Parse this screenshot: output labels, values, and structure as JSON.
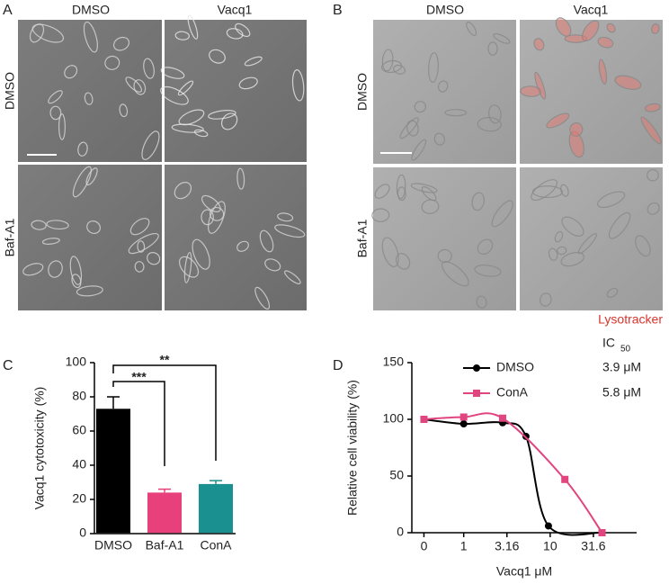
{
  "panels": [
    {
      "label": "A",
      "columns": [
        "DMSO",
        "Vacq1"
      ],
      "rows": [
        "DMSO",
        "Baf-A1"
      ]
    },
    {
      "label": "B",
      "columns": [
        "DMSO",
        "Vacq1"
      ],
      "rows": [
        "DMSO",
        "Baf-A1"
      ],
      "stain": "Lysotracker"
    }
  ],
  "chart_data": [
    {
      "type": "bar",
      "panel_label": "C",
      "y_label": "Vacq1 cytotoxicity (%)",
      "categories": [
        "DMSO",
        "Baf-A1",
        "ConA"
      ],
      "values": [
        73,
        24,
        29
      ],
      "errors": [
        7,
        2,
        2
      ],
      "colors": [
        "#000000",
        "#e8407a",
        "#1a9090"
      ],
      "ylim": [
        0,
        100
      ],
      "yticks": [
        0,
        20,
        40,
        60,
        80,
        100
      ],
      "annotations": [
        "***",
        "**"
      ]
    },
    {
      "type": "line",
      "panel_label": "D",
      "y_label": "Relative cell viability (%)",
      "x_label": "Vacq1 μM",
      "xlim": [
        -0.6,
        2.0
      ],
      "xticks": [
        {
          "value": -0.46,
          "label": "0"
        },
        {
          "value": 0,
          "label": "1"
        },
        {
          "value": 0.5,
          "label": "3.16"
        },
        {
          "value": 1,
          "label": "10"
        },
        {
          "value": 1.5,
          "label": "31.6"
        }
      ],
      "ylim": [
        0,
        150
      ],
      "yticks": [
        0,
        50,
        100,
        150
      ],
      "legend_title": {
        "main": "IC",
        "sub": "50"
      },
      "series": [
        {
          "name": "DMSO",
          "color": "#000000",
          "marker": "circle",
          "ic50_label": "3.9 μM",
          "x": [
            -0.46,
            0,
            0.45,
            0.72,
            0.98,
            1.6
          ],
          "values": [
            100,
            96,
            97,
            85,
            6,
            0
          ]
        },
        {
          "name": "ConA",
          "color": "#e0457f",
          "marker": "square",
          "ic50_label": "5.8 μM",
          "x": [
            -0.46,
            0,
            0.45,
            1.17,
            1.6
          ],
          "values": [
            100,
            102,
            101,
            47,
            0
          ]
        }
      ]
    }
  ]
}
